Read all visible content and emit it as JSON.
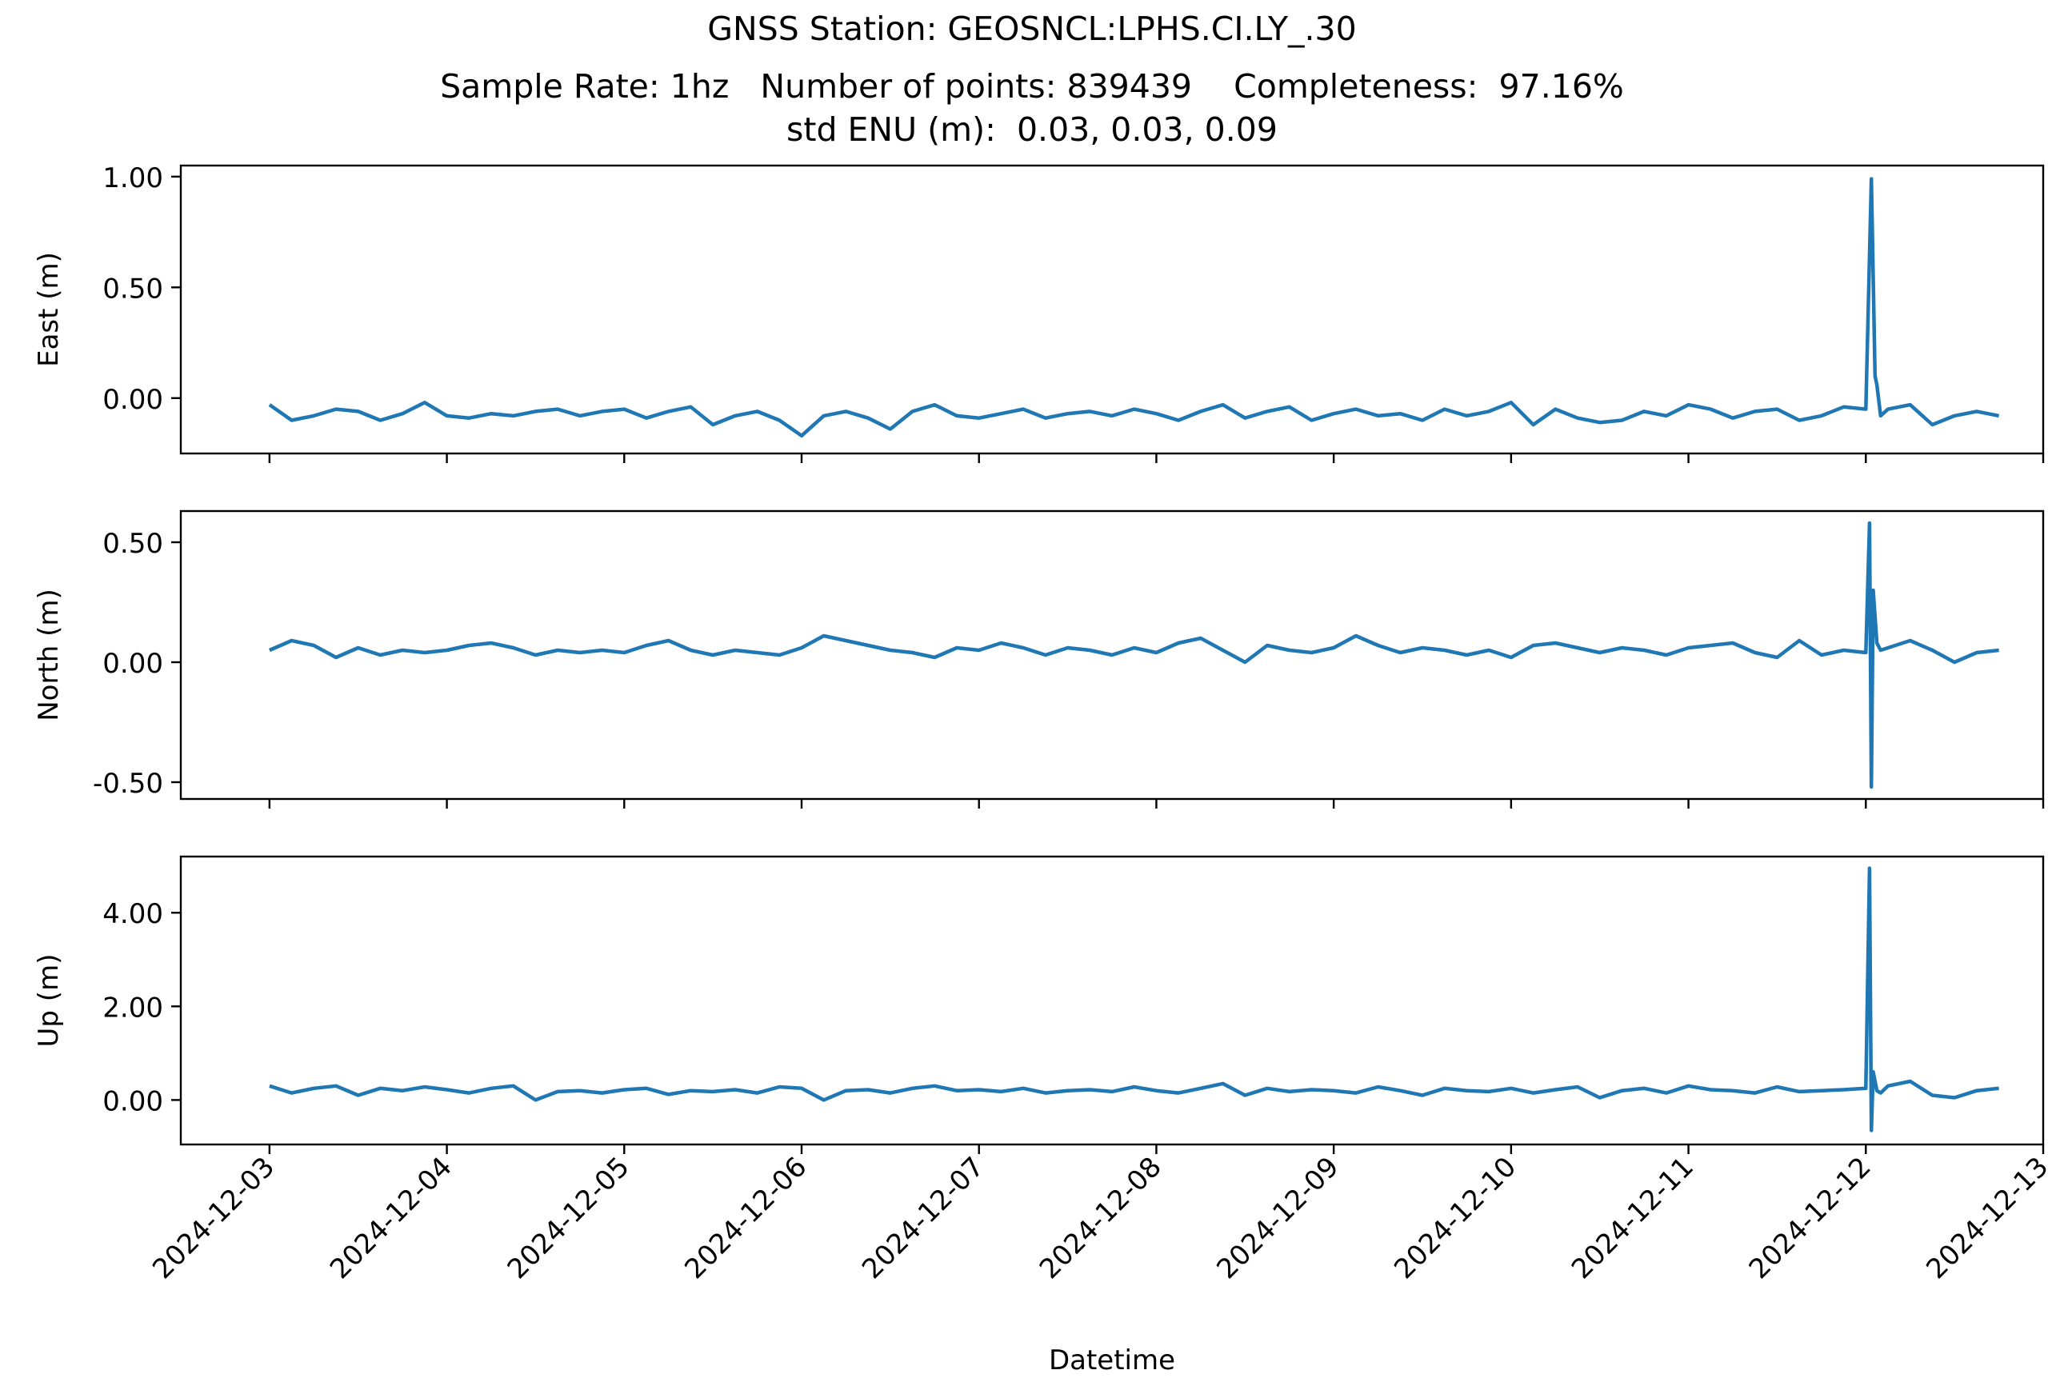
{
  "figure": {
    "title_lines": [
      "GNSS Station: GEOSNCL:LPHS.CI.LY_.30",
      "Sample Rate: 1hz   Number of points: 839439    Completeness:  97.16%",
      "std ENU (m):  0.03, 0.03, 0.09"
    ],
    "xlabel": "Datetime",
    "line_color": "#1f77b4"
  },
  "chart_data": {
    "type": "line",
    "x_axis": {
      "type": "datetime",
      "range": [
        "2024-12-02T12:00",
        "2024-12-13T00:00"
      ],
      "ticks": [
        "2024-12-03",
        "2024-12-04",
        "2024-12-05",
        "2024-12-06",
        "2024-12-07",
        "2024-12-08",
        "2024-12-09",
        "2024-12-10",
        "2024-12-11",
        "2024-12-12",
        "2024-12-13"
      ]
    },
    "panels": [
      {
        "ylabel": "East (m)",
        "ylim": [
          -0.25,
          1.05
        ],
        "yticks": [
          0.0,
          0.5,
          1.0
        ],
        "ytick_labels": [
          "0.00",
          "0.50",
          "1.00"
        ],
        "series": [
          {
            "x": [
              "2024-12-03T00:00",
              "2024-12-03T03:00",
              "2024-12-03T06:00",
              "2024-12-03T09:00",
              "2024-12-03T12:00",
              "2024-12-03T15:00",
              "2024-12-03T18:00",
              "2024-12-03T21:00",
              "2024-12-04T00:00",
              "2024-12-04T03:00",
              "2024-12-04T06:00",
              "2024-12-04T09:00",
              "2024-12-04T12:00",
              "2024-12-04T15:00",
              "2024-12-04T18:00",
              "2024-12-04T21:00",
              "2024-12-05T00:00",
              "2024-12-05T03:00",
              "2024-12-05T06:00",
              "2024-12-05T09:00",
              "2024-12-05T12:00",
              "2024-12-05T15:00",
              "2024-12-05T18:00",
              "2024-12-05T21:00",
              "2024-12-06T00:00",
              "2024-12-06T03:00",
              "2024-12-06T06:00",
              "2024-12-06T09:00",
              "2024-12-06T12:00",
              "2024-12-06T15:00",
              "2024-12-06T18:00",
              "2024-12-06T21:00",
              "2024-12-07T00:00",
              "2024-12-07T03:00",
              "2024-12-07T06:00",
              "2024-12-07T09:00",
              "2024-12-07T12:00",
              "2024-12-07T15:00",
              "2024-12-07T18:00",
              "2024-12-07T21:00",
              "2024-12-08T00:00",
              "2024-12-08T03:00",
              "2024-12-08T06:00",
              "2024-12-08T09:00",
              "2024-12-08T12:00",
              "2024-12-08T15:00",
              "2024-12-08T18:00",
              "2024-12-08T21:00",
              "2024-12-09T00:00",
              "2024-12-09T03:00",
              "2024-12-09T06:00",
              "2024-12-09T09:00",
              "2024-12-09T12:00",
              "2024-12-09T15:00",
              "2024-12-09T18:00",
              "2024-12-09T21:00",
              "2024-12-10T00:00",
              "2024-12-10T03:00",
              "2024-12-10T06:00",
              "2024-12-10T09:00",
              "2024-12-10T12:00",
              "2024-12-10T15:00",
              "2024-12-10T18:00",
              "2024-12-10T21:00",
              "2024-12-11T00:00",
              "2024-12-11T03:00",
              "2024-12-11T06:00",
              "2024-12-11T09:00",
              "2024-12-11T12:00",
              "2024-12-11T15:00",
              "2024-12-11T18:00",
              "2024-12-11T21:00",
              "2024-12-12T00:00",
              "2024-12-12T00:45",
              "2024-12-12T01:15",
              "2024-12-12T01:30",
              "2024-12-12T02:00",
              "2024-12-12T03:00",
              "2024-12-12T06:00",
              "2024-12-12T09:00",
              "2024-12-12T12:00",
              "2024-12-12T15:00",
              "2024-12-12T18:00"
            ],
            "y": [
              -0.03,
              -0.1,
              -0.08,
              -0.05,
              -0.06,
              -0.1,
              -0.07,
              -0.02,
              -0.08,
              -0.09,
              -0.07,
              -0.08,
              -0.06,
              -0.05,
              -0.08,
              -0.06,
              -0.05,
              -0.09,
              -0.06,
              -0.04,
              -0.12,
              -0.08,
              -0.06,
              -0.1,
              -0.17,
              -0.08,
              -0.06,
              -0.09,
              -0.14,
              -0.06,
              -0.03,
              -0.08,
              -0.09,
              -0.07,
              -0.05,
              -0.09,
              -0.07,
              -0.06,
              -0.08,
              -0.05,
              -0.07,
              -0.1,
              -0.06,
              -0.03,
              -0.09,
              -0.06,
              -0.04,
              -0.1,
              -0.07,
              -0.05,
              -0.08,
              -0.07,
              -0.1,
              -0.05,
              -0.08,
              -0.06,
              -0.02,
              -0.12,
              -0.05,
              -0.09,
              -0.11,
              -0.1,
              -0.06,
              -0.08,
              -0.03,
              -0.05,
              -0.09,
              -0.06,
              -0.05,
              -0.1,
              -0.08,
              -0.04,
              -0.05,
              0.99,
              0.1,
              0.06,
              -0.08,
              -0.05,
              -0.03,
              -0.12,
              -0.08,
              -0.06,
              -0.08
            ]
          }
        ]
      },
      {
        "ylabel": "North (m)",
        "ylim": [
          -0.57,
          0.63
        ],
        "yticks": [
          -0.5,
          0.0,
          0.5
        ],
        "ytick_labels": [
          "-0.50",
          "0.00",
          "0.50"
        ],
        "series": [
          {
            "x": [
              "2024-12-03T00:00",
              "2024-12-03T03:00",
              "2024-12-03T06:00",
              "2024-12-03T09:00",
              "2024-12-03T12:00",
              "2024-12-03T15:00",
              "2024-12-03T18:00",
              "2024-12-03T21:00",
              "2024-12-04T00:00",
              "2024-12-04T03:00",
              "2024-12-04T06:00",
              "2024-12-04T09:00",
              "2024-12-04T12:00",
              "2024-12-04T15:00",
              "2024-12-04T18:00",
              "2024-12-04T21:00",
              "2024-12-05T00:00",
              "2024-12-05T03:00",
              "2024-12-05T06:00",
              "2024-12-05T09:00",
              "2024-12-05T12:00",
              "2024-12-05T15:00",
              "2024-12-05T18:00",
              "2024-12-05T21:00",
              "2024-12-06T00:00",
              "2024-12-06T03:00",
              "2024-12-06T06:00",
              "2024-12-06T09:00",
              "2024-12-06T12:00",
              "2024-12-06T15:00",
              "2024-12-06T18:00",
              "2024-12-06T21:00",
              "2024-12-07T00:00",
              "2024-12-07T03:00",
              "2024-12-07T06:00",
              "2024-12-07T09:00",
              "2024-12-07T12:00",
              "2024-12-07T15:00",
              "2024-12-07T18:00",
              "2024-12-07T21:00",
              "2024-12-08T00:00",
              "2024-12-08T03:00",
              "2024-12-08T06:00",
              "2024-12-08T09:00",
              "2024-12-08T12:00",
              "2024-12-08T15:00",
              "2024-12-08T18:00",
              "2024-12-08T21:00",
              "2024-12-09T00:00",
              "2024-12-09T03:00",
              "2024-12-09T06:00",
              "2024-12-09T09:00",
              "2024-12-09T12:00",
              "2024-12-09T15:00",
              "2024-12-09T18:00",
              "2024-12-09T21:00",
              "2024-12-10T00:00",
              "2024-12-10T03:00",
              "2024-12-10T06:00",
              "2024-12-10T09:00",
              "2024-12-10T12:00",
              "2024-12-10T15:00",
              "2024-12-10T18:00",
              "2024-12-10T21:00",
              "2024-12-11T00:00",
              "2024-12-11T03:00",
              "2024-12-11T06:00",
              "2024-12-11T09:00",
              "2024-12-11T12:00",
              "2024-12-11T15:00",
              "2024-12-11T18:00",
              "2024-12-11T21:00",
              "2024-12-12T00:00",
              "2024-12-12T00:30",
              "2024-12-12T00:45",
              "2024-12-12T01:00",
              "2024-12-12T01:30",
              "2024-12-12T02:00",
              "2024-12-12T03:00",
              "2024-12-12T06:00",
              "2024-12-12T09:00",
              "2024-12-12T12:00",
              "2024-12-12T15:00",
              "2024-12-12T18:00"
            ],
            "y": [
              0.05,
              0.09,
              0.07,
              0.02,
              0.06,
              0.03,
              0.05,
              0.04,
              0.05,
              0.07,
              0.08,
              0.06,
              0.03,
              0.05,
              0.04,
              0.05,
              0.04,
              0.07,
              0.09,
              0.05,
              0.03,
              0.05,
              0.04,
              0.03,
              0.06,
              0.11,
              0.09,
              0.07,
              0.05,
              0.04,
              0.02,
              0.06,
              0.05,
              0.08,
              0.06,
              0.03,
              0.06,
              0.05,
              0.03,
              0.06,
              0.04,
              0.08,
              0.1,
              0.05,
              0.0,
              0.07,
              0.05,
              0.04,
              0.06,
              0.11,
              0.07,
              0.04,
              0.06,
              0.05,
              0.03,
              0.05,
              0.02,
              0.07,
              0.08,
              0.06,
              0.04,
              0.06,
              0.05,
              0.03,
              0.06,
              0.07,
              0.08,
              0.04,
              0.02,
              0.09,
              0.03,
              0.05,
              0.04,
              0.58,
              -0.52,
              0.3,
              0.08,
              0.05,
              0.06,
              0.09,
              0.05,
              0.0,
              0.04,
              0.05
            ]
          }
        ]
      },
      {
        "ylabel": "Up (m)",
        "ylim": [
          -0.95,
          5.2
        ],
        "yticks": [
          0.0,
          2.0,
          4.0
        ],
        "ytick_labels": [
          "0.00",
          "2.00",
          "4.00"
        ],
        "series": [
          {
            "x": [
              "2024-12-03T00:00",
              "2024-12-03T03:00",
              "2024-12-03T06:00",
              "2024-12-03T09:00",
              "2024-12-03T12:00",
              "2024-12-03T15:00",
              "2024-12-03T18:00",
              "2024-12-03T21:00",
              "2024-12-04T00:00",
              "2024-12-04T03:00",
              "2024-12-04T06:00",
              "2024-12-04T09:00",
              "2024-12-04T12:00",
              "2024-12-04T15:00",
              "2024-12-04T18:00",
              "2024-12-04T21:00",
              "2024-12-05T00:00",
              "2024-12-05T03:00",
              "2024-12-05T06:00",
              "2024-12-05T09:00",
              "2024-12-05T12:00",
              "2024-12-05T15:00",
              "2024-12-05T18:00",
              "2024-12-05T21:00",
              "2024-12-06T00:00",
              "2024-12-06T03:00",
              "2024-12-06T06:00",
              "2024-12-06T09:00",
              "2024-12-06T12:00",
              "2024-12-06T15:00",
              "2024-12-06T18:00",
              "2024-12-06T21:00",
              "2024-12-07T00:00",
              "2024-12-07T03:00",
              "2024-12-07T06:00",
              "2024-12-07T09:00",
              "2024-12-07T12:00",
              "2024-12-07T15:00",
              "2024-12-07T18:00",
              "2024-12-07T21:00",
              "2024-12-08T00:00",
              "2024-12-08T03:00",
              "2024-12-08T06:00",
              "2024-12-08T09:00",
              "2024-12-08T12:00",
              "2024-12-08T15:00",
              "2024-12-08T18:00",
              "2024-12-08T21:00",
              "2024-12-09T00:00",
              "2024-12-09T03:00",
              "2024-12-09T06:00",
              "2024-12-09T09:00",
              "2024-12-09T12:00",
              "2024-12-09T15:00",
              "2024-12-09T18:00",
              "2024-12-09T21:00",
              "2024-12-10T00:00",
              "2024-12-10T03:00",
              "2024-12-10T06:00",
              "2024-12-10T09:00",
              "2024-12-10T12:00",
              "2024-12-10T15:00",
              "2024-12-10T18:00",
              "2024-12-10T21:00",
              "2024-12-11T00:00",
              "2024-12-11T03:00",
              "2024-12-11T06:00",
              "2024-12-11T09:00",
              "2024-12-11T12:00",
              "2024-12-11T15:00",
              "2024-12-11T18:00",
              "2024-12-11T21:00",
              "2024-12-12T00:00",
              "2024-12-12T00:30",
              "2024-12-12T00:45",
              "2024-12-12T01:00",
              "2024-12-12T01:30",
              "2024-12-12T02:00",
              "2024-12-12T03:00",
              "2024-12-12T06:00",
              "2024-12-12T09:00",
              "2024-12-12T12:00",
              "2024-12-12T15:00",
              "2024-12-12T18:00"
            ],
            "y": [
              0.3,
              0.15,
              0.25,
              0.3,
              0.1,
              0.25,
              0.2,
              0.28,
              0.22,
              0.15,
              0.25,
              0.3,
              0.0,
              0.18,
              0.2,
              0.15,
              0.22,
              0.25,
              0.12,
              0.2,
              0.18,
              0.22,
              0.15,
              0.28,
              0.25,
              0.0,
              0.2,
              0.22,
              0.15,
              0.25,
              0.3,
              0.2,
              0.22,
              0.18,
              0.25,
              0.15,
              0.2,
              0.22,
              0.18,
              0.28,
              0.2,
              0.15,
              0.25,
              0.35,
              0.1,
              0.25,
              0.18,
              0.22,
              0.2,
              0.15,
              0.28,
              0.2,
              0.1,
              0.25,
              0.2,
              0.18,
              0.25,
              0.15,
              0.22,
              0.28,
              0.05,
              0.2,
              0.25,
              0.15,
              0.3,
              0.22,
              0.2,
              0.15,
              0.28,
              0.18,
              0.2,
              0.22,
              0.25,
              4.95,
              -0.65,
              0.6,
              0.2,
              0.15,
              0.3,
              0.4,
              0.1,
              0.05,
              0.2,
              0.25
            ]
          }
        ]
      }
    ],
    "grid": false,
    "legend": "none"
  }
}
